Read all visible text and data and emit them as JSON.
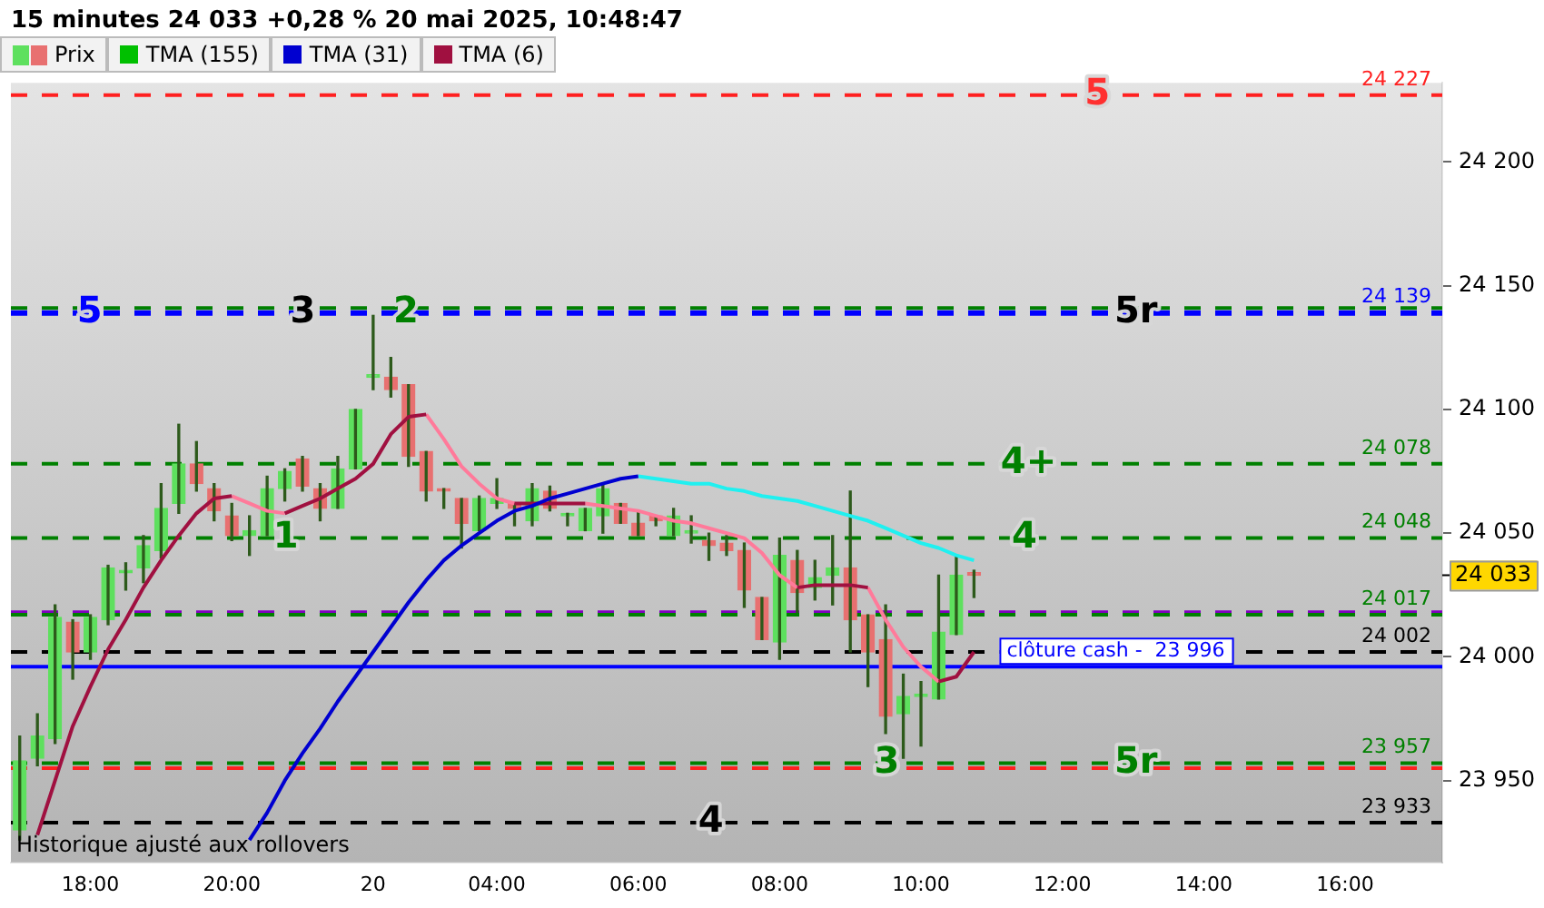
{
  "chart_data": {
    "type": "candlestick",
    "title": "15 minutes 24 033 +0,28 % 20 mai 2025, 10:48:47",
    "categories": [
      null,
      null,
      null,
      null,
      "18:00",
      null,
      null,
      null,
      null,
      null,
      null,
      null,
      "20:00",
      null,
      null,
      null,
      null,
      null,
      null,
      null,
      "20",
      null,
      null,
      null,
      null,
      null,
      null,
      "04:00",
      null,
      null,
      null,
      null,
      null,
      null,
      null,
      "06:00",
      null,
      null,
      null,
      null,
      null,
      null,
      null,
      "08:00",
      null,
      null,
      null,
      null,
      null,
      null,
      null,
      "10:00",
      null,
      null,
      null,
      null,
      null,
      null,
      null,
      "12:00",
      null,
      null,
      null,
      null,
      null,
      null,
      null,
      "14:00",
      null,
      null,
      null,
      null,
      null,
      null,
      null,
      "16:00",
      null,
      null,
      null,
      null,
      null
    ],
    "series": [
      {
        "name": "Prix",
        "ohlc": [
          [
            23930,
            23968,
            23926,
            23958
          ],
          [
            23959,
            23977,
            23956,
            23968
          ],
          [
            23967,
            24021,
            23965,
            24016
          ],
          [
            24014,
            24015,
            23991,
            24002
          ],
          [
            24002,
            24017,
            23999,
            24016
          ],
          [
            24015,
            24037,
            24013,
            24036
          ],
          [
            24034,
            24038,
            24027,
            24035
          ],
          [
            24036,
            24049,
            24030,
            24045
          ],
          [
            24043,
            24070,
            24040,
            24060
          ],
          [
            24062,
            24094,
            24058,
            24078
          ],
          [
            24078,
            24087,
            24067,
            24070
          ],
          [
            24068,
            24070,
            24055,
            24059
          ],
          [
            24057,
            24062,
            24047,
            24049
          ],
          [
            24049,
            24057,
            24041,
            24051
          ],
          [
            24049,
            24073,
            24049,
            24068
          ],
          [
            24068,
            24076,
            24063,
            24075
          ],
          [
            24080,
            24081,
            24067,
            24069
          ],
          [
            24068,
            24070,
            24055,
            24060
          ],
          [
            24060,
            24081,
            24060,
            24076
          ],
          [
            24076,
            24100,
            24076,
            24100
          ],
          [
            24113,
            24138,
            24108,
            24114
          ],
          [
            24113,
            24121,
            24105,
            24108
          ],
          [
            24110,
            24110,
            24077,
            24081
          ],
          [
            24083,
            24083,
            24063,
            24067
          ],
          [
            24068,
            24068,
            24060,
            24067
          ],
          [
            24064,
            24064,
            24044,
            24054
          ],
          [
            24051,
            24065,
            24051,
            24064
          ],
          [
            24062,
            24072,
            24060,
            24064
          ],
          [
            24062,
            24062,
            24053,
            24060
          ],
          [
            24055,
            24070,
            24053,
            24068
          ],
          [
            24067,
            24069,
            24059,
            24060
          ],
          [
            24057,
            24058,
            24053,
            24058
          ],
          [
            24051,
            24060,
            24051,
            24060
          ],
          [
            24057,
            24070,
            24050,
            24068
          ],
          [
            24062,
            24062,
            24054,
            24054
          ],
          [
            24054,
            24059,
            24049,
            24049
          ],
          [
            24057,
            24057,
            24053,
            24055
          ],
          [
            24049,
            24060,
            24049,
            24057
          ],
          [
            24050,
            24057,
            24046,
            24051
          ],
          [
            24047,
            24050,
            24039,
            24045
          ],
          [
            24046,
            24049,
            24041,
            24043
          ],
          [
            24043,
            24046,
            24020,
            24027
          ],
          [
            24024,
            24024,
            24007,
            24007
          ],
          [
            24006,
            24048,
            23999,
            24041
          ],
          [
            24039,
            24043,
            24018,
            24026
          ],
          [
            24028,
            24039,
            24023,
            24032
          ],
          [
            24033,
            24049,
            24021,
            24036
          ],
          [
            24036,
            24067,
            24002,
            24015
          ],
          [
            24017,
            24017,
            23988,
            24002
          ],
          [
            24007,
            24021,
            23969,
            23976
          ],
          [
            23977,
            23993,
            23959,
            23984
          ],
          [
            23984,
            23990,
            23964,
            23985
          ],
          [
            23983,
            24033,
            23983,
            24010
          ],
          [
            24009,
            24041,
            24009,
            24033
          ],
          [
            24034,
            24035,
            24024,
            24033
          ],
          null,
          null,
          null,
          null,
          null,
          null,
          null,
          null,
          null,
          null,
          null,
          null,
          null,
          null,
          null,
          null,
          null,
          null,
          null,
          null,
          null,
          null,
          null,
          null,
          null,
          null
        ],
        "colors": [
          "#5ee05e",
          "#5ee05e",
          "#5ee05e",
          "#e87070",
          "#5ee05e",
          "#5ee05e",
          "#5ee05e",
          "#5ee05e",
          "#5ee05e",
          "#5ee05e",
          "#e87070",
          "#e87070",
          "#e87070",
          "#5ee05e",
          "#5ee05e",
          "#5ee05e",
          "#e87070",
          "#e87070",
          "#5ee05e",
          "#5ee05e",
          "#5ee05e",
          "#e87070",
          "#e87070",
          "#e87070",
          "#e87070",
          "#e87070",
          "#5ee05e",
          "#5ee05e",
          "#e87070",
          "#5ee05e",
          "#e87070",
          "#5ee05e",
          "#5ee05e",
          "#5ee05e",
          "#e87070",
          "#e87070",
          "#e87070",
          "#5ee05e",
          "#5ee05e",
          "#e87070",
          "#e87070",
          "#e87070",
          "#e87070",
          "#5ee05e",
          "#e87070",
          "#5ee05e",
          "#5ee05e",
          "#e87070",
          "#e87070",
          "#e87070",
          "#5ee05e",
          "#5ee05e",
          "#5ee05e",
          "#5ee05e",
          "#e87070",
          null,
          null,
          null,
          null,
          null,
          null,
          null,
          null,
          null,
          null,
          null,
          null,
          null,
          null,
          null,
          null,
          null,
          null,
          null,
          null,
          null,
          null,
          null,
          null,
          null,
          null
        ]
      },
      {
        "name": "TMA (155)",
        "type": "line",
        "color": "#00c000",
        "values": [
          null,
          null,
          null,
          null,
          null,
          null,
          null,
          null,
          null,
          null,
          null,
          null,
          null,
          null,
          null,
          null,
          null,
          null,
          null,
          null,
          null,
          null,
          null,
          null,
          null,
          null,
          null,
          null,
          null,
          null,
          null,
          null,
          null,
          null,
          null,
          null,
          null,
          null,
          null,
          null,
          null,
          null,
          null,
          null,
          null,
          null,
          null,
          null,
          null,
          null,
          null,
          null,
          null,
          null,
          null,
          null,
          null,
          null,
          null,
          null,
          null,
          null,
          null,
          null,
          null,
          null,
          null,
          null,
          null,
          null,
          null,
          null,
          null,
          null,
          null,
          null,
          null,
          null,
          null,
          null,
          null
        ]
      },
      {
        "name": "TMA (31)",
        "type": "line",
        "color": "#0000d0",
        "values": [
          null,
          null,
          null,
          null,
          null,
          null,
          null,
          null,
          null,
          null,
          null,
          null,
          null,
          23926,
          23937,
          23950,
          23961,
          23971,
          23982,
          23992,
          24002,
          24012,
          24022,
          24031,
          24039,
          24045,
          24050,
          24055,
          24059,
          24061,
          24064,
          24066,
          24068,
          24070,
          24072,
          24073,
          null,
          null,
          null,
          null,
          null,
          null,
          null,
          null,
          null,
          null,
          null,
          null,
          null,
          null,
          null,
          null,
          null,
          null,
          null,
          null,
          null,
          null,
          null,
          null,
          null,
          null,
          null,
          null,
          null,
          null,
          null,
          null,
          null,
          null,
          null,
          null,
          null,
          null,
          null,
          null,
          null,
          null,
          null,
          null,
          null
        ]
      },
      {
        "type": "line",
        "color": "#20f0f0",
        "values": [
          null,
          null,
          null,
          null,
          null,
          null,
          null,
          null,
          null,
          null,
          null,
          null,
          null,
          null,
          null,
          null,
          null,
          null,
          null,
          null,
          null,
          null,
          null,
          null,
          null,
          null,
          null,
          null,
          null,
          null,
          null,
          null,
          null,
          null,
          null,
          24073,
          24072,
          24071,
          24070,
          24070,
          24068,
          24067,
          24065,
          24064,
          24063,
          24061,
          24059,
          24057,
          24055,
          24052,
          24049,
          24046,
          24044,
          24041,
          24039,
          null,
          null,
          null,
          null,
          null,
          null,
          null,
          null,
          null,
          null,
          null,
          null,
          null,
          null,
          null,
          null,
          null,
          null,
          null,
          null,
          null,
          null,
          null,
          null,
          null,
          null
        ]
      },
      {
        "name": "TMA (6)",
        "type": "line",
        "color": "#a01040",
        "values": [
          null,
          23928,
          23950,
          23972,
          23988,
          24003,
          24015,
          24028,
          24039,
          24049,
          24058,
          24064,
          24065,
          null,
          null,
          24058,
          24061,
          24064,
          24068,
          24072,
          24078,
          24090,
          24097,
          24098,
          null,
          null,
          null,
          null,
          24062,
          24062,
          24062,
          24062,
          24062,
          null,
          null,
          null,
          null,
          null,
          null,
          null,
          null,
          null,
          null,
          null,
          24028,
          24029,
          24029,
          24029,
          24028,
          null,
          null,
          null,
          23990,
          23992,
          24002,
          null,
          null,
          null,
          null,
          null,
          null,
          null,
          null,
          null,
          null,
          null,
          null,
          null,
          null,
          null,
          null,
          null,
          null,
          null,
          null,
          null,
          null,
          null,
          null,
          null,
          null
        ]
      },
      {
        "type": "line",
        "color": "#ff7a9a",
        "values": [
          null,
          null,
          null,
          null,
          null,
          null,
          null,
          null,
          null,
          null,
          null,
          null,
          24065,
          24062,
          24059,
          24058,
          null,
          null,
          null,
          null,
          null,
          null,
          null,
          24098,
          24088,
          24077,
          24070,
          24064,
          24062,
          null,
          null,
          null,
          24062,
          24061,
          24060,
          24059,
          24057,
          24055,
          24054,
          24052,
          24050,
          24048,
          24042,
          24033,
          24028,
          null,
          null,
          null,
          24028,
          24015,
          24004,
          23996,
          23990,
          null,
          null,
          null,
          null,
          null,
          null,
          null,
          null,
          null,
          null,
          null,
          null,
          null,
          null,
          null,
          null,
          null,
          null,
          null,
          null,
          null,
          null,
          null,
          null,
          null,
          null,
          null,
          null
        ]
      }
    ],
    "ylim": [
      23917,
      24232
    ],
    "yticks": [
      {
        "value": 23950,
        "label": "23 950"
      },
      {
        "value": 24000,
        "label": "24 000"
      },
      {
        "value": 24050,
        "label": "24 050"
      },
      {
        "value": 24100,
        "label": "24 100"
      },
      {
        "value": 24150,
        "label": "24 150"
      },
      {
        "value": 24200,
        "label": "24 200"
      }
    ],
    "ref_lines": [
      {
        "axis": "y",
        "value": 24227,
        "label": "24 227",
        "color": "#ff2020",
        "line_style": "dashed"
      },
      {
        "axis": "y",
        "value": 24141,
        "label": null,
        "color": "#008000",
        "line_style": "dashed"
      },
      {
        "axis": "y",
        "value": 24139,
        "label": "24 139",
        "color": "#0000ff",
        "line_style": "dashed"
      },
      {
        "axis": "y",
        "value": 24078,
        "label": "24 078",
        "color": "#008000",
        "line_style": "dashed"
      },
      {
        "axis": "y",
        "value": 24048,
        "label": "24 048",
        "color": "#008000",
        "line_style": "dashed"
      },
      {
        "axis": "y",
        "value": 24018,
        "label": null,
        "color": "#8000c0",
        "line_style": "dashed"
      },
      {
        "axis": "y",
        "value": 24017,
        "label": "24 017",
        "color": "#008000",
        "line_style": "dashed"
      },
      {
        "axis": "y",
        "value": 24002,
        "label": "24 002",
        "color": "#000000",
        "line_style": "dashed"
      },
      {
        "axis": "y",
        "value": 23996,
        "label": "clôture cash -  23 996",
        "color": "#0000ff",
        "line_style": "solid"
      },
      {
        "axis": "y",
        "value": 23957,
        "label": "23 957",
        "color": "#008000",
        "line_style": "dashed"
      },
      {
        "axis": "y",
        "value": 23955,
        "label": null,
        "color": "#ff2020",
        "line_style": "dashed"
      },
      {
        "axis": "y",
        "value": 23933,
        "label": "23 933",
        "color": "#000000",
        "line_style": "dashed"
      }
    ],
    "annotations": [
      {
        "text": "5",
        "y": 24139
      },
      {
        "text": "3",
        "y": 24139
      },
      {
        "text": "2",
        "y": 24139
      },
      {
        "text": "5r",
        "y": 24139
      },
      {
        "text": "5",
        "y": 24227
      },
      {
        "text": "4+",
        "y": 24078
      },
      {
        "text": "4",
        "y": 24048
      },
      {
        "text": "1",
        "y": 24048
      },
      {
        "text": "3",
        "y": 23957
      },
      {
        "text": "5r",
        "y": 23957
      },
      {
        "text": "4",
        "y": 23933
      },
      "24 033",
      "Historique ajusté aux rollovers"
    ],
    "grid": false,
    "legend": "top left"
  }
}
